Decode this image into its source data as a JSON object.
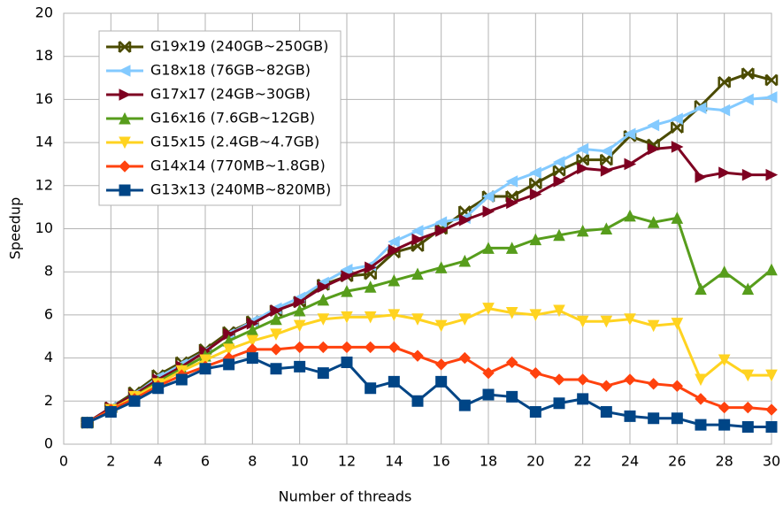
{
  "chart_data": {
    "type": "line",
    "x_label": "Number of threads",
    "y_label": "Speedup",
    "x": [
      1,
      2,
      3,
      4,
      5,
      6,
      7,
      8,
      9,
      10,
      11,
      12,
      13,
      14,
      15,
      16,
      17,
      18,
      19,
      20,
      21,
      22,
      23,
      24,
      25,
      26,
      27,
      28,
      29,
      30
    ],
    "xlim": [
      0,
      30
    ],
    "xticks": [
      0,
      2,
      4,
      6,
      8,
      10,
      12,
      14,
      16,
      18,
      20,
      22,
      24,
      26,
      28,
      30
    ],
    "ylim": [
      0,
      20
    ],
    "yticks": [
      0,
      2,
      4,
      6,
      8,
      10,
      12,
      14,
      16,
      18,
      20
    ],
    "grid": true,
    "legend": "top-left",
    "series": [
      {
        "name": "G19x19 (240GB~250GB)",
        "color": "#4b4b00",
        "marker": "x-star",
        "values": [
          1,
          1.7,
          2.4,
          3.2,
          3.8,
          4.4,
          5.2,
          5.7,
          6.2,
          6.6,
          7.4,
          7.8,
          7.9,
          8.9,
          9.2,
          10,
          10.8,
          11.5,
          11.5,
          12.1,
          12.7,
          13.2,
          13.2,
          14.3,
          13.9,
          14.7,
          15.7,
          16.8,
          17.2,
          16.9
        ]
      },
      {
        "name": "G18x18 (76GB~82GB)",
        "color": "#83caff",
        "marker": "left-triangle",
        "values": [
          1,
          1.7,
          2.3,
          3.1,
          3.7,
          4.3,
          5.1,
          5.7,
          6.3,
          6.8,
          7.5,
          8.1,
          8.3,
          9.4,
          9.9,
          10.3,
          10.5,
          11.5,
          12.2,
          12.6,
          13.1,
          13.7,
          13.6,
          14.4,
          14.8,
          15.1,
          15.6,
          15.5,
          16,
          16.1
        ]
      },
      {
        "name": "G17x17 (24GB~30GB)",
        "color": "#7e0021",
        "marker": "right-triangle",
        "values": [
          1,
          1.7,
          2.3,
          3,
          3.6,
          4.3,
          5.1,
          5.6,
          6.2,
          6.6,
          7.3,
          7.8,
          8.2,
          9,
          9.5,
          9.9,
          10.4,
          10.8,
          11.2,
          11.6,
          12.2,
          12.8,
          12.7,
          13,
          13.7,
          13.8,
          12.4,
          12.6,
          12.5,
          12.5
        ]
      },
      {
        "name": "G16x16 (7.6GB~12GB)",
        "color": "#579d1c",
        "marker": "up-triangle",
        "values": [
          1,
          1.6,
          2.2,
          2.9,
          3.5,
          4.1,
          4.8,
          5.3,
          5.8,
          6.2,
          6.7,
          7.1,
          7.3,
          7.6,
          7.9,
          8.2,
          8.5,
          9.1,
          9.1,
          9.5,
          9.7,
          9.9,
          10,
          10.6,
          10.3,
          10.5,
          7.2,
          8,
          7.2,
          8.1
        ]
      },
      {
        "name": "G15x15 (2.4GB~4.7GB)",
        "color": "#ffd320",
        "marker": "down-triangle",
        "values": [
          1,
          1.6,
          2.2,
          2.8,
          3.4,
          3.9,
          4.4,
          4.8,
          5.1,
          5.5,
          5.8,
          5.9,
          5.9,
          6,
          5.8,
          5.5,
          5.8,
          6.3,
          6.1,
          6,
          6.2,
          5.7,
          5.7,
          5.8,
          5.5,
          5.6,
          3,
          3.9,
          3.2,
          3.2
        ]
      },
      {
        "name": "G14x14 (770MB~1.8GB)",
        "color": "#ff420e",
        "marker": "diamond",
        "values": [
          1,
          1.6,
          2.1,
          2.7,
          3.2,
          3.6,
          4,
          4.4,
          4.4,
          4.5,
          4.5,
          4.5,
          4.5,
          4.5,
          4.1,
          3.7,
          4,
          3.3,
          3.8,
          3.3,
          3,
          3,
          2.7,
          3,
          2.8,
          2.7,
          2.1,
          1.7,
          1.7,
          1.6
        ]
      },
      {
        "name": "G13x13 (240MB~820MB)",
        "color": "#004586",
        "marker": "square",
        "values": [
          1,
          1.5,
          2,
          2.6,
          3,
          3.5,
          3.7,
          4,
          3.5,
          3.6,
          3.3,
          3.8,
          2.6,
          2.9,
          2,
          2.9,
          1.8,
          2.3,
          2.2,
          1.5,
          1.9,
          2.1,
          1.5,
          1.3,
          1.2,
          1.2,
          0.9,
          0.9,
          0.8,
          0.8
        ]
      }
    ]
  }
}
